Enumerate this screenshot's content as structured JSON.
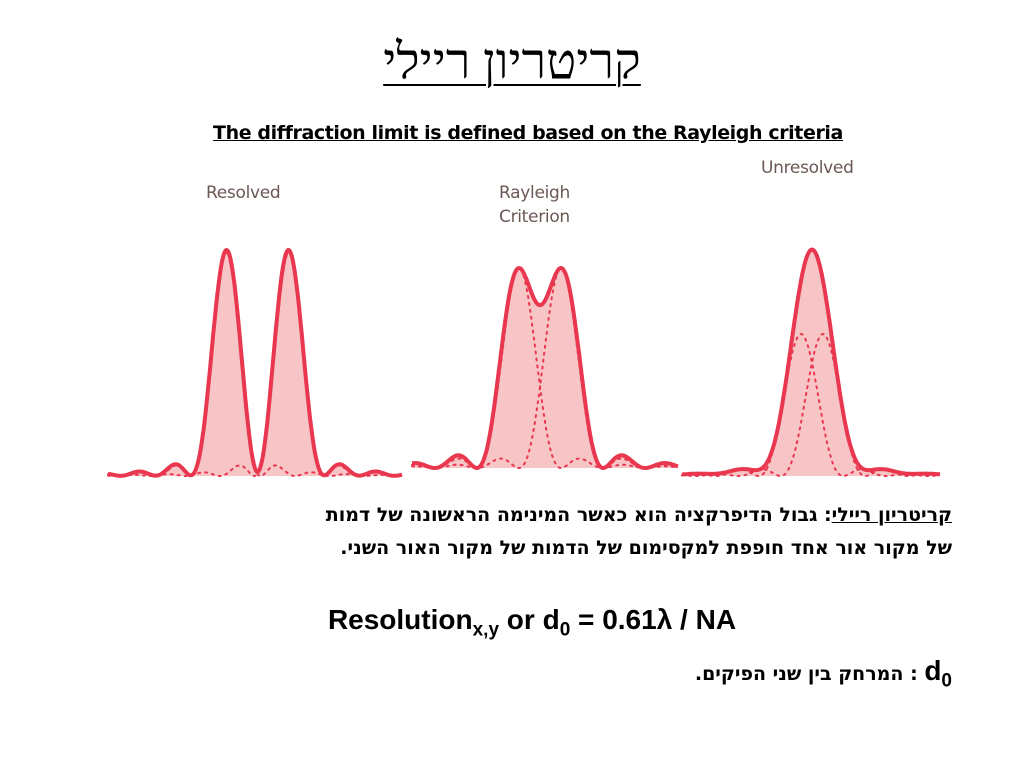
{
  "slide": {
    "title": "קריטריון ריילי",
    "subtitle": "The diffraction limit is defined based on the Rayleigh criteria"
  },
  "figure": {
    "labels": {
      "resolved": "Resolved",
      "rayleigh_line1": "Rayleigh",
      "rayleigh_line2": "Criterion",
      "unresolved": "Unresolved"
    },
    "colors": {
      "stroke": "#e8374f",
      "fill": "#f7c5c6"
    }
  },
  "definition": {
    "term": "קריטריון ריילי",
    "colon": ":",
    "line1_rest": " גבול הדיפרקציה הוא כאשר המינימה הראשונה של דמות",
    "line2": "של מקור אור אחד חופפת למקסימום של הדמות של מקור האור השני."
  },
  "formula": {
    "resolution": "Resolution",
    "sub_xy": "x,y",
    "or_d": " or d",
    "sub_0": "0",
    "rest": " = 0.61λ / NA"
  },
  "d0_note": {
    "symbol": "d",
    "sub": "0",
    "separator": " : ",
    "text": "המרחק בין שני הפיקים."
  }
}
